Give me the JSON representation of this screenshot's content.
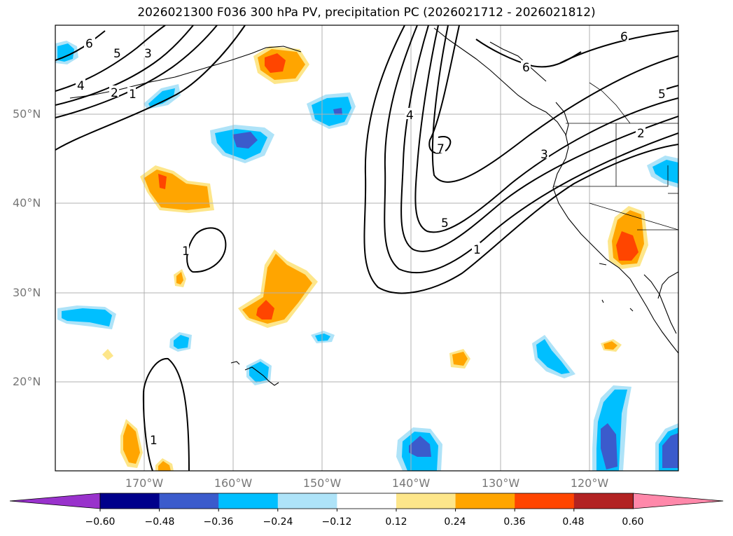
{
  "title": "2026021300 F036 300 hPa PV, precipitation PC (2026021712 - 2026021812)",
  "map": {
    "lat_labels": [
      "50°N",
      "40°N",
      "30°N",
      "20°N"
    ],
    "lon_labels": [
      "170°W",
      "160°W",
      "150°W",
      "140°W",
      "130°W",
      "120°W"
    ],
    "extent": {
      "lon_min": -180,
      "lon_max": -110,
      "lat_min": 10,
      "lat_max": 60
    }
  },
  "pv_contour_labels": [
    "6",
    "5",
    "3",
    "4",
    "2",
    "1",
    "1",
    "4",
    "7",
    "6",
    "5",
    "1",
    "3",
    "2",
    "6",
    "5",
    "1"
  ],
  "colorbar": {
    "tick_labels": [
      "−0.60",
      "−0.48",
      "−0.36",
      "−0.24",
      "−0.12",
      "0.12",
      "0.24",
      "0.36",
      "0.48",
      "0.60"
    ],
    "colors": [
      "#9932cc",
      "#00008b",
      "#3b5bcc",
      "#00bfff",
      "#aee3f8",
      "#ffffff",
      "#fde68a",
      "#ffa500",
      "#ff4500",
      "#b22222",
      "#ff88aa"
    ]
  },
  "precip_colors": {
    "weak_neg": "#aee3f8",
    "mid_neg": "#00bfff",
    "strong_neg": "#3b5bcc",
    "weak_pos": "#fde68a",
    "mid_pos": "#ffa500",
    "strong_pos": "#ff4500"
  }
}
